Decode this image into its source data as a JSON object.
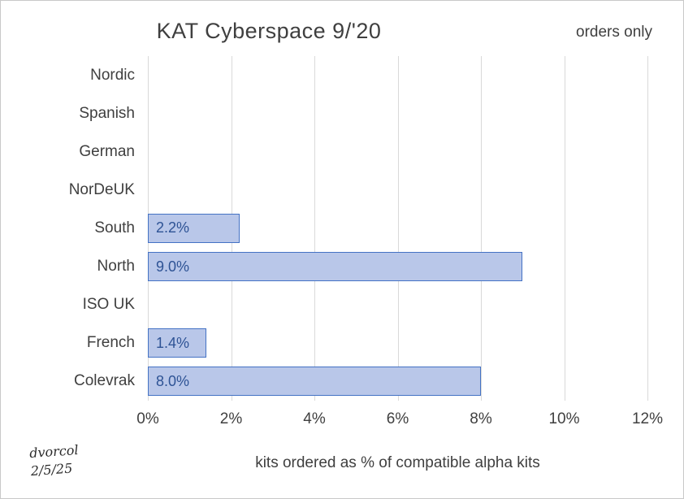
{
  "header": {
    "title": "KAT Cyberspace 9/'20",
    "subtitle": "orders only"
  },
  "annotations": {
    "signature_line1": "dvorcol",
    "signature_line2": "2/5/25"
  },
  "chart_data": {
    "type": "bar",
    "orientation": "horizontal",
    "title": "KAT Cyberspace 9/'20",
    "subtitle": "orders only",
    "xlabel": "kits ordered as % of compatible alpha kits",
    "ylabel": "",
    "categories": [
      "Nordic",
      "Spanish",
      "German",
      "NorDeUK",
      "South",
      "North",
      "ISO UK",
      "French",
      "Colevrak"
    ],
    "values": [
      0,
      0,
      0,
      0,
      2.2,
      9.0,
      0,
      1.4,
      8.0
    ],
    "data_labels": [
      "",
      "",
      "",
      "",
      "2.2%",
      "9.0%",
      "",
      "1.4%",
      "8.0%"
    ],
    "xlim": [
      0,
      12
    ],
    "xticks": [
      0,
      2,
      4,
      6,
      8,
      10,
      12
    ],
    "xtick_labels": [
      "0%",
      "2%",
      "4%",
      "6%",
      "8%",
      "10%",
      "12%"
    ],
    "grid": true,
    "legend": false,
    "colors": {
      "bar_fill": "#b9c7e9",
      "bar_border": "#4472c4",
      "data_label": "#2e5395",
      "gridline": "#d9d9d9",
      "text": "#3f3f3f"
    }
  }
}
